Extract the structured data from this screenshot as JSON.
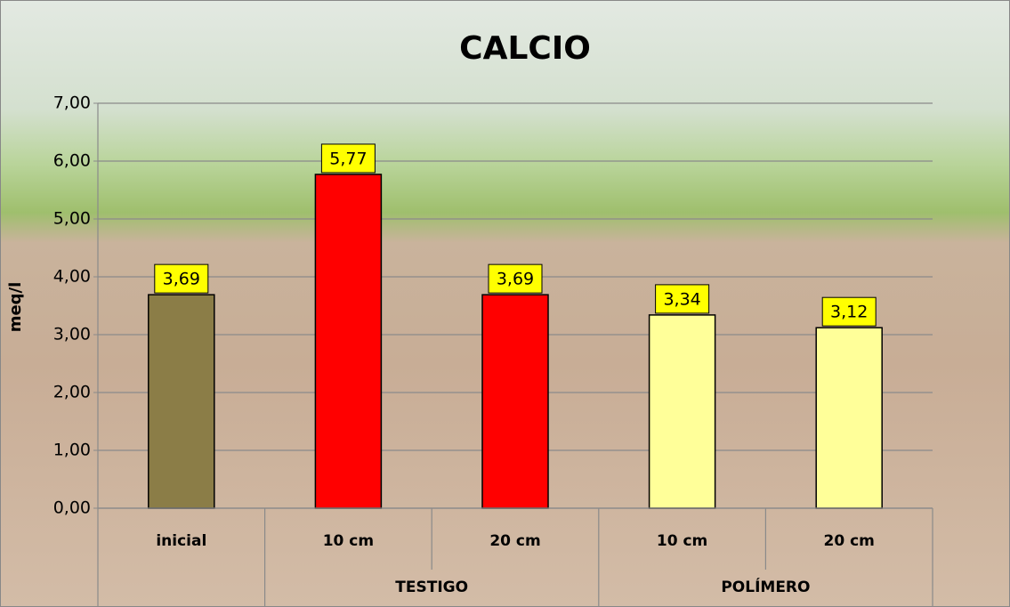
{
  "chart_data": {
    "type": "bar",
    "title": "CALCIO",
    "y_label": "meq/l",
    "categories": [
      "inicial",
      "10 cm",
      "20 cm",
      "10 cm",
      "20 cm"
    ],
    "category_groups": [
      null,
      "TESTIGO",
      "TESTIGO",
      "POLÍMERO",
      "POLÍMERO"
    ],
    "values": [
      3.69,
      5.77,
      3.69,
      3.34,
      3.12
    ],
    "value_labels": [
      "3,69",
      "5,77",
      "3,69",
      "3,34",
      "3,12"
    ],
    "colors": [
      "#8b7d47",
      "#ff0000",
      "#ff0000",
      "#ffff99",
      "#ffff99"
    ],
    "ylim": [
      0,
      7
    ],
    "yticks": [
      {
        "value": 0,
        "label": "0,00"
      },
      {
        "value": 1,
        "label": "1,00"
      },
      {
        "value": 2,
        "label": "2,00"
      },
      {
        "value": 3,
        "label": "3,00"
      },
      {
        "value": 4,
        "label": "4,00"
      },
      {
        "value": 5,
        "label": "5,00"
      },
      {
        "value": 6,
        "label": "6,00"
      },
      {
        "value": 7,
        "label": "7,00"
      }
    ],
    "grid": true
  }
}
